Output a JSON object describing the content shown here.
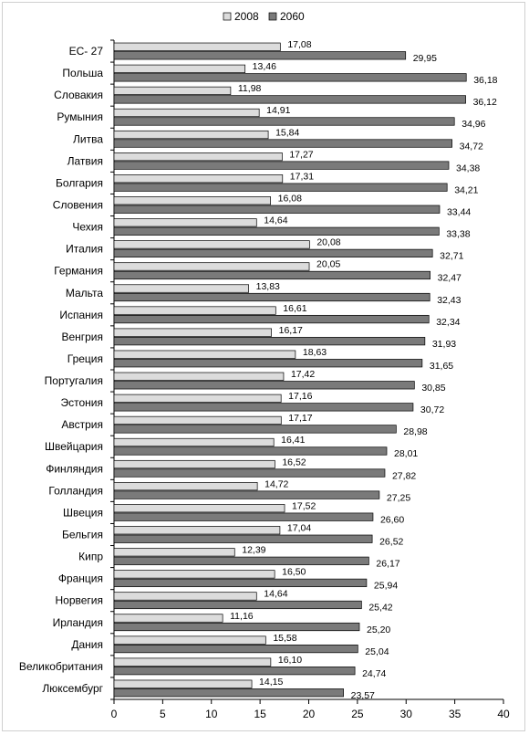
{
  "chart_data": {
    "type": "bar",
    "orientation": "horizontal",
    "title": "",
    "xlabel": "",
    "ylabel": "",
    "xlim": [
      0,
      40
    ],
    "xticks": [
      0,
      5,
      10,
      15,
      20,
      25,
      30,
      35,
      40
    ],
    "grid": false,
    "legend_position": "top",
    "categories": [
      "ЕС- 27",
      "Польша",
      "Словакия",
      "Румыния",
      "Литва",
      "Латвия",
      "Болгария",
      "Словения",
      "Чехия",
      "Италия",
      "Германия",
      "Мальта",
      "Испания",
      "Венгрия",
      "Греция",
      "Португалия",
      "Эстония",
      "Австрия",
      "Швейцария",
      "Финляндия",
      "Голландия",
      "Швеция",
      "Бельгия",
      "Кипр",
      "Франция",
      "Норвегия",
      "Ирландия",
      "Дания",
      "Великобритания",
      "Люксембург"
    ],
    "series": [
      {
        "name": "2008",
        "color": "#dcdcdc",
        "values": [
          17.08,
          13.46,
          11.98,
          14.91,
          15.84,
          17.27,
          17.31,
          16.08,
          14.64,
          20.08,
          20.05,
          13.83,
          16.61,
          16.17,
          18.63,
          17.42,
          17.16,
          17.17,
          16.41,
          16.52,
          14.72,
          17.52,
          17.04,
          12.39,
          16.5,
          14.64,
          11.16,
          15.58,
          16.1,
          14.15
        ],
        "labels": [
          "17,08",
          "13,46",
          "11,98",
          "14,91",
          "15,84",
          "17,27",
          "17,31",
          "16,08",
          "14,64",
          "20,08",
          "20,05",
          "13,83",
          "16,61",
          "16,17",
          "18,63",
          "17,42",
          "17,16",
          "17,17",
          "16,41",
          "16,52",
          "14,72",
          "17,52",
          "17,04",
          "12,39",
          "16,50",
          "14,64",
          "11,16",
          "15,58",
          "16,10",
          "14,15"
        ]
      },
      {
        "name": "2060",
        "color": "#7a7a7a",
        "values": [
          29.95,
          36.18,
          36.12,
          34.96,
          34.72,
          34.38,
          34.21,
          33.44,
          33.38,
          32.71,
          32.47,
          32.43,
          32.34,
          31.93,
          31.65,
          30.85,
          30.72,
          28.98,
          28.01,
          27.82,
          27.25,
          26.6,
          26.52,
          26.17,
          25.94,
          25.42,
          25.2,
          25.04,
          24.74,
          23.57
        ],
        "labels": [
          "29,95",
          "36,18",
          "36,12",
          "34,96",
          "34,72",
          "34,38",
          "34,21",
          "33,44",
          "33,38",
          "32,71",
          "32,47",
          "32,43",
          "32,34",
          "31,93",
          "31,65",
          "30,85",
          "30,72",
          "28,98",
          "28,01",
          "27,82",
          "27,25",
          "26,60",
          "26,52",
          "26,17",
          "25,94",
          "25,42",
          "25,20",
          "25,04",
          "24,74",
          "23,57"
        ]
      }
    ]
  }
}
